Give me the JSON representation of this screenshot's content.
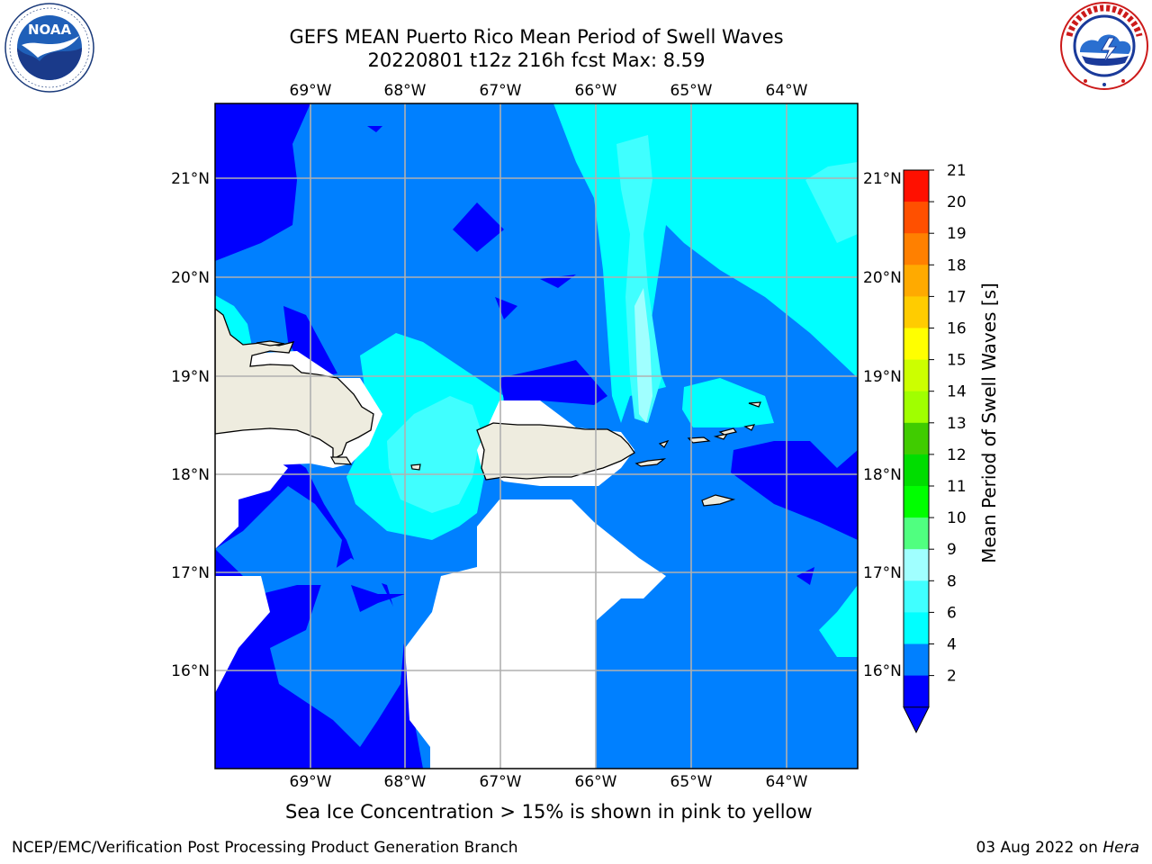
{
  "title": {
    "line1": "GEFS MEAN Puerto Rico Mean Period of Swell Waves",
    "line2": "20220801 t12z 216h fcst   Max: 8.59"
  },
  "logos": {
    "left": {
      "name": "NOAA",
      "ring_text": "NATIONAL OCEANIC AND ATMOSPHERIC ADMINISTRATION · U.S. DEPARTMENT OF COMMERCE"
    },
    "right": {
      "name": "NATIONAL WEATHER SERVICE"
    }
  },
  "map": {
    "lon_ticks": [
      "69°W",
      "68°W",
      "67°W",
      "66°W",
      "65°W",
      "64°W"
    ],
    "lat_ticks": [
      "21°N",
      "20°N",
      "19°N",
      "18°N",
      "17°N",
      "16°N"
    ],
    "land_color": "#eeecdf",
    "grid_color": "#b0b0b0"
  },
  "colorbar": {
    "label": "Mean Period of Swell Waves [s]",
    "ticks": [
      "21",
      "20",
      "19",
      "18",
      "17",
      "16",
      "15",
      "14",
      "13",
      "12",
      "11",
      "10",
      "9",
      "8",
      "6",
      "4",
      "2"
    ],
    "levels": [
      {
        "from": 2,
        "color": "#0000ff"
      },
      {
        "from": 4,
        "color": "#0080ff"
      },
      {
        "from": 6,
        "color": "#00ffff"
      },
      {
        "from": 7,
        "color": "#40ffff"
      },
      {
        "from": 8,
        "color": "#a0ffff"
      },
      {
        "from": 9,
        "color": "#50ff80"
      },
      {
        "from": 10,
        "color": "#00ff00"
      },
      {
        "from": 11,
        "color": "#00dd00"
      },
      {
        "from": 12,
        "color": "#40cc00"
      },
      {
        "from": 13,
        "color": "#a0ff00"
      },
      {
        "from": 14,
        "color": "#ccff00"
      },
      {
        "from": 15,
        "color": "#ffff00"
      },
      {
        "from": 16,
        "color": "#ffcc00"
      },
      {
        "from": 17,
        "color": "#ffaa00"
      },
      {
        "from": 18,
        "color": "#ff8000"
      },
      {
        "from": 19,
        "color": "#ff5000"
      },
      {
        "from": 20,
        "color": "#ff1000"
      }
    ],
    "extend_color": "#0000ff"
  },
  "note": "Sea Ice Concentration > 15% is shown in pink to yellow",
  "footer": {
    "left": "NCEP/EMC/Verification Post Processing Product Generation Branch",
    "right_date": "03 Aug 2022 on ",
    "right_host": "Hera"
  }
}
